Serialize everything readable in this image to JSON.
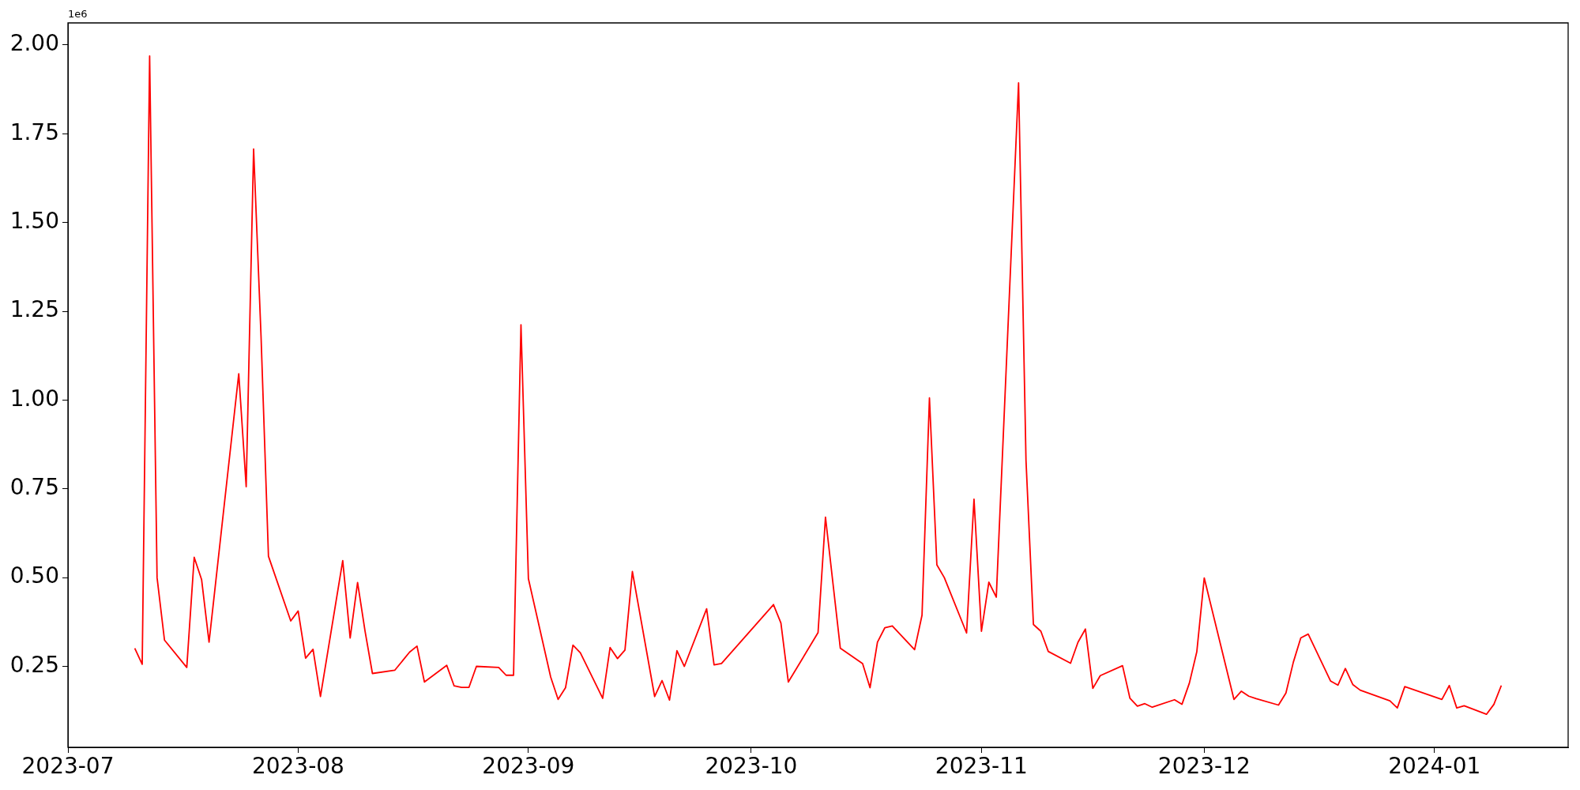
{
  "chart_data": {
    "type": "line",
    "color": "#ff0000",
    "annotations": [
      "1e6"
    ],
    "x": [
      "2023-07-10",
      "2023-07-11",
      "2023-07-12",
      "2023-07-13",
      "2023-07-14",
      "2023-07-17",
      "2023-07-18",
      "2023-07-19",
      "2023-07-20",
      "2023-07-24",
      "2023-07-25",
      "2023-07-26",
      "2023-07-27",
      "2023-07-28",
      "2023-07-31",
      "2023-08-01",
      "2023-08-02",
      "2023-08-03",
      "2023-08-04",
      "2023-08-07",
      "2023-08-08",
      "2023-08-09",
      "2023-08-10",
      "2023-08-11",
      "2023-08-14",
      "2023-08-16",
      "2023-08-17",
      "2023-08-18",
      "2023-08-21",
      "2023-08-22",
      "2023-08-23",
      "2023-08-24",
      "2023-08-25",
      "2023-08-28",
      "2023-08-29",
      "2023-08-30",
      "2023-08-31",
      "2023-09-01",
      "2023-09-04",
      "2023-09-05",
      "2023-09-06",
      "2023-09-07",
      "2023-09-08",
      "2023-09-11",
      "2023-09-12",
      "2023-09-13",
      "2023-09-14",
      "2023-09-15",
      "2023-09-18",
      "2023-09-19",
      "2023-09-20",
      "2023-09-21",
      "2023-09-22",
      "2023-09-25",
      "2023-09-26",
      "2023-09-27",
      "2023-10-04",
      "2023-10-05",
      "2023-10-06",
      "2023-10-10",
      "2023-10-11",
      "2023-10-13",
      "2023-10-16",
      "2023-10-17",
      "2023-10-18",
      "2023-10-19",
      "2023-10-20",
      "2023-10-23",
      "2023-10-24",
      "2023-10-25",
      "2023-10-26",
      "2023-10-27",
      "2023-10-30",
      "2023-10-31",
      "2023-11-01",
      "2023-11-02",
      "2023-11-03",
      "2023-11-06",
      "2023-11-07",
      "2023-11-08",
      "2023-11-09",
      "2023-11-10",
      "2023-11-13",
      "2023-11-14",
      "2023-11-15",
      "2023-11-16",
      "2023-11-17",
      "2023-11-20",
      "2023-11-21",
      "2023-11-22",
      "2023-11-23",
      "2023-11-24",
      "2023-11-27",
      "2023-11-28",
      "2023-11-29",
      "2023-11-30",
      "2023-12-01",
      "2023-12-05",
      "2023-12-06",
      "2023-12-07",
      "2023-12-08",
      "2023-12-11",
      "2023-12-12",
      "2023-12-13",
      "2023-12-14",
      "2023-12-15",
      "2023-12-18",
      "2023-12-19",
      "2023-12-20",
      "2023-12-21",
      "2023-12-22",
      "2023-12-26",
      "2023-12-27",
      "2023-12-28",
      "2024-01-02",
      "2024-01-03",
      "2024-01-04",
      "2024-01-05",
      "2024-01-08",
      "2024-01-09",
      "2024-01-10"
    ],
    "values": [
      0.301,
      0.256,
      1.969,
      0.5,
      0.324,
      0.247,
      0.557,
      0.494,
      0.318,
      1.074,
      0.756,
      1.707,
      1.18,
      0.56,
      0.378,
      0.406,
      0.273,
      0.298,
      0.165,
      0.548,
      0.33,
      0.486,
      0.35,
      0.23,
      0.239,
      0.29,
      0.307,
      0.206,
      0.253,
      0.195,
      0.191,
      0.191,
      0.25,
      0.247,
      0.225,
      0.225,
      1.212,
      0.497,
      0.22,
      0.157,
      0.19,
      0.31,
      0.288,
      0.16,
      0.303,
      0.272,
      0.296,
      0.517,
      0.165,
      0.21,
      0.155,
      0.294,
      0.25,
      0.412,
      0.254,
      0.258,
      0.424,
      0.372,
      0.206,
      0.345,
      0.67,
      0.301,
      0.258,
      0.19,
      0.318,
      0.359,
      0.364,
      0.297,
      0.394,
      1.006,
      0.536,
      0.5,
      0.344,
      0.721,
      0.349,
      0.487,
      0.445,
      1.893,
      0.83,
      0.368,
      0.349,
      0.292,
      0.259,
      0.318,
      0.355,
      0.188,
      0.224,
      0.252,
      0.16,
      0.138,
      0.145,
      0.135,
      0.156,
      0.143,
      0.203,
      0.291,
      0.499,
      0.157,
      0.18,
      0.166,
      0.159,
      0.141,
      0.175,
      0.262,
      0.33,
      0.341,
      0.209,
      0.197,
      0.244,
      0.199,
      0.183,
      0.153,
      0.133,
      0.193,
      0.157,
      0.196,
      0.133,
      0.139,
      0.115,
      0.143,
      0.196
    ],
    "xlim": [
      "2023-07-01",
      "2024-01-19"
    ],
    "xticks": [
      {
        "value": "2023-07-01",
        "label": "2023-07"
      },
      {
        "value": "2023-08-01",
        "label": "2023-08"
      },
      {
        "value": "2023-09-01",
        "label": "2023-09"
      },
      {
        "value": "2023-10-01",
        "label": "2023-10"
      },
      {
        "value": "2023-11-01",
        "label": "2023-11"
      },
      {
        "value": "2023-12-01",
        "label": "2023-12"
      },
      {
        "value": "2024-01-01",
        "label": "2024-01"
      }
    ],
    "ylim": [
      0.022,
      2.062
    ],
    "yticks": [
      {
        "value": 0.25,
        "label": "0.25"
      },
      {
        "value": 0.5,
        "label": "0.50"
      },
      {
        "value": 0.75,
        "label": "0.75"
      },
      {
        "value": 1,
        "label": "1.00"
      },
      {
        "value": 1.25,
        "label": "1.25"
      },
      {
        "value": 1.5,
        "label": "1.50"
      },
      {
        "value": 1.75,
        "label": "1.75"
      },
      {
        "value": 2,
        "label": "2.00"
      }
    ]
  }
}
